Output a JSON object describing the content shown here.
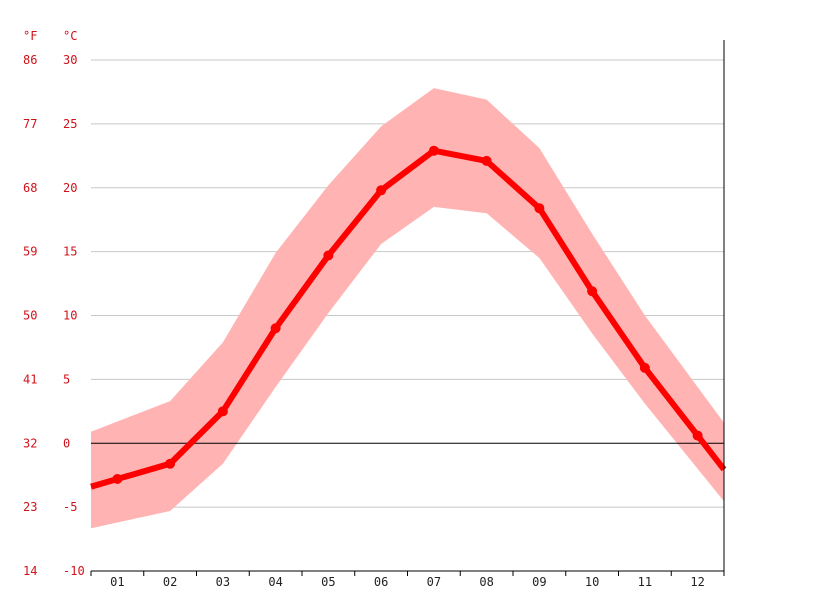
{
  "chart_data": {
    "type": "line",
    "units": {
      "left": "°F",
      "right": "°C"
    },
    "x": [
      "01",
      "02",
      "03",
      "04",
      "05",
      "06",
      "07",
      "08",
      "09",
      "10",
      "11",
      "12"
    ],
    "y_ticks_c": [
      30,
      25,
      20,
      15,
      10,
      5,
      0,
      -5,
      -10
    ],
    "y_ticks_f": [
      86,
      77,
      68,
      59,
      50,
      41,
      32,
      23,
      14
    ],
    "ylim": [
      -10,
      30
    ],
    "series": [
      {
        "values": [
          -2.8,
          -1.6,
          2.5,
          9.0,
          14.7,
          19.8,
          22.9,
          22.1,
          18.4,
          11.9,
          5.9,
          0.6
        ]
      }
    ],
    "band": {
      "max": [
        1.7,
        3.3,
        7.9,
        14.9,
        20.2,
        24.8,
        27.8,
        26.9,
        23.1,
        16.4,
        10.0,
        4.4
      ],
      "min": [
        -6.2,
        -5.3,
        -1.6,
        4.4,
        10.2,
        15.6,
        18.5,
        18.0,
        14.5,
        8.6,
        3.1,
        -2.0
      ]
    },
    "colors": {
      "line": "#ff0000",
      "band": "#ffb3b3",
      "ticks": "#d0121b"
    },
    "grid": true
  }
}
